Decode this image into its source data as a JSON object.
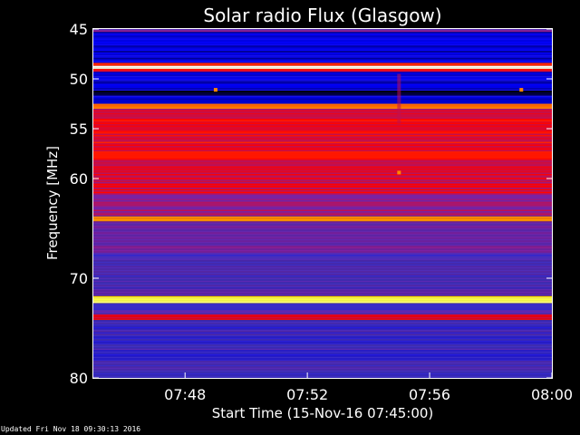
{
  "chart_data": {
    "type": "heatmap",
    "title": "Solar radio Flux (Glasgow)",
    "xlabel": "Start Time (15-Nov-16 07:45:00)",
    "ylabel": "Frequency [MHz]",
    "x_ticks": [
      "07:48",
      "07:52",
      "07:56",
      "08:00"
    ],
    "x_tick_minutes": [
      3,
      7,
      11,
      15
    ],
    "xlim_minutes": [
      0,
      15
    ],
    "y_ticks": [
      45,
      50,
      55,
      60,
      70,
      80
    ],
    "ylim": [
      45,
      80
    ],
    "colormap": [
      "#000000",
      "#0000ff",
      "#4030c0",
      "#8020a0",
      "#ff0000",
      "#ff8000",
      "#ffff00",
      "#ffffff"
    ],
    "bands": [
      {
        "from": 45,
        "to": 45.3,
        "level": 0.4
      },
      {
        "from": 45.3,
        "to": 48.4,
        "level": 0.13
      },
      {
        "from": 48.4,
        "to": 48.7,
        "level": 0.6
      },
      {
        "from": 48.7,
        "to": 49.0,
        "level": 1.0
      },
      {
        "from": 49.0,
        "to": 49.3,
        "level": 0.55
      },
      {
        "from": 49.3,
        "to": 51.2,
        "level": 0.14
      },
      {
        "from": 51.2,
        "to": 51.7,
        "level": 0.05
      },
      {
        "from": 51.7,
        "to": 52.5,
        "level": 0.14
      },
      {
        "from": 52.5,
        "to": 53.0,
        "level": 0.7
      },
      {
        "from": 53.0,
        "to": 54.0,
        "level": 0.5
      },
      {
        "from": 54.0,
        "to": 59.0,
        "level": 0.55
      },
      {
        "from": 59.0,
        "to": 61.5,
        "level": 0.52
      },
      {
        "from": 61.5,
        "to": 63.8,
        "level": 0.45
      },
      {
        "from": 63.8,
        "to": 64.3,
        "level": 0.68
      },
      {
        "from": 64.3,
        "to": 67.5,
        "level": 0.38
      },
      {
        "from": 67.5,
        "to": 68.2,
        "level": 0.3
      },
      {
        "from": 68.2,
        "to": 71.8,
        "level": 0.32
      },
      {
        "from": 71.8,
        "to": 72.5,
        "level": 0.88
      },
      {
        "from": 72.5,
        "to": 73.6,
        "level": 0.32
      },
      {
        "from": 73.6,
        "to": 74.2,
        "level": 0.55
      },
      {
        "from": 74.2,
        "to": 80,
        "level": 0.28
      }
    ],
    "spikes": [
      {
        "minute": 4.0,
        "freq": 51.1
      },
      {
        "minute": 14.0,
        "freq": 51.1
      },
      {
        "minute": 10.0,
        "freq": 59.4
      }
    ],
    "bursts": [
      {
        "minute": 10.0,
        "from": 49.5,
        "to": 54.5
      }
    ]
  },
  "footer": {
    "updated": "Updated Fri Nov 18 09:30:13 2016"
  }
}
